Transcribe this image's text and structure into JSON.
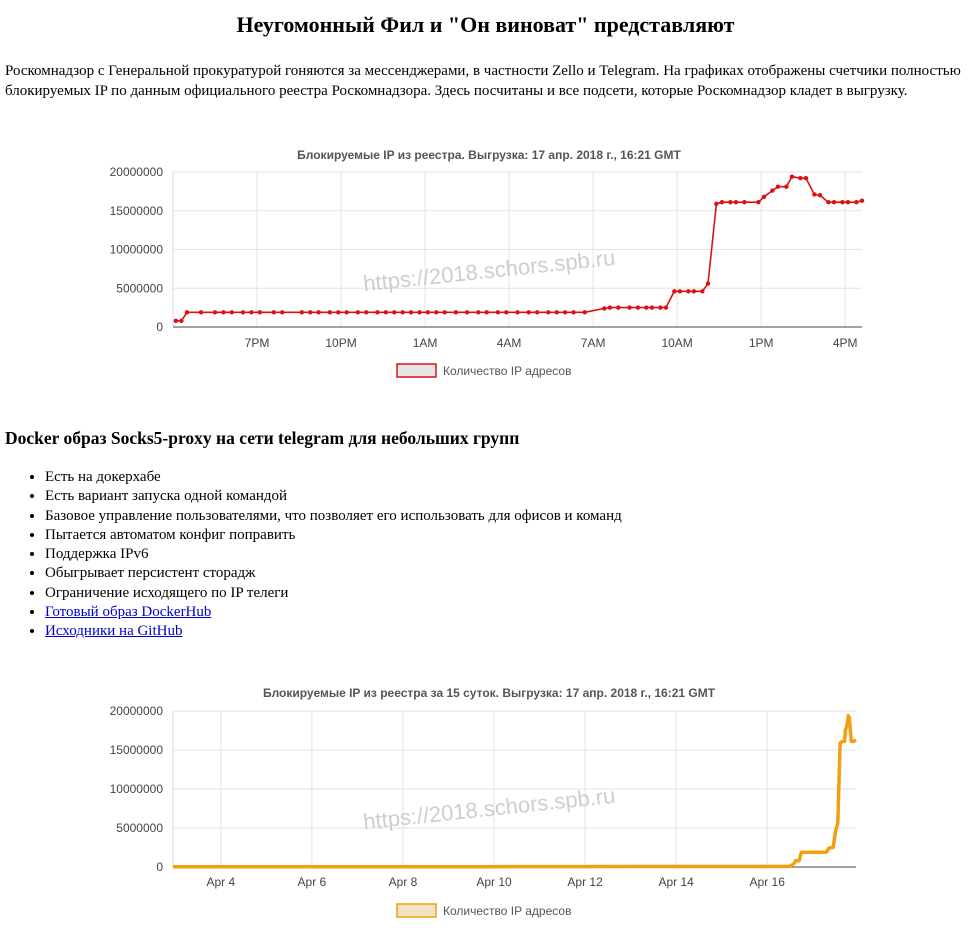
{
  "page": {
    "title": "Неугомонный Фил и \"Он виноват\" представляют",
    "intro": "Роскомнадзор с Генеральной прокуратурой гоняются за мессенджерами, в частности Zello и Telegram. На графиках отображены счетчики полностью блокируемых IP по данным официального реестра Роскомнадзора. Здесь посчитаны и все подсети, которые Роскомнадзор кладет в выгрузку.",
    "docker_heading": "Docker образ Socks5-proxy на сети telegram для небольших групп",
    "features": [
      "Есть на докерхабе",
      "Есть вариант запуска одной командой",
      "Базовое управление пользователями, что позволяет его использовать для офисов и команд",
      "Пытается автоматом конфиг поправить",
      "Поддержка IPv6",
      "Обыгрывает персистент сторадж",
      "Ограничение исходящего по IP телеги"
    ],
    "links": [
      "Готовый образ DockerHub",
      "Исходники на GitHub"
    ],
    "watermark": "https://2018.schors.spb.ru"
  },
  "chart_data": [
    {
      "type": "line",
      "title": "Блокируемые IP из реестра. Выгрузка: 17 апр. 2018 г., 16:21 GMT",
      "x_unit": "hour (time of day, 16 Apr 16:00 → 17 Apr 17:00)",
      "x_range": [
        16.0,
        40.6
      ],
      "x_ticks": [
        {
          "x": 19,
          "label": "7PM"
        },
        {
          "x": 22,
          "label": "10PM"
        },
        {
          "x": 25,
          "label": "1AM"
        },
        {
          "x": 28,
          "label": "4AM"
        },
        {
          "x": 31,
          "label": "7AM"
        },
        {
          "x": 34,
          "label": "10AM"
        },
        {
          "x": 37,
          "label": "1PM"
        },
        {
          "x": 40,
          "label": "4PM"
        }
      ],
      "ylim": [
        0,
        20000000
      ],
      "y_ticks": [
        0,
        5000000,
        10000000,
        15000000,
        20000000
      ],
      "grid": true,
      "legend": "bottom",
      "color": "#dd1111",
      "series": [
        {
          "name": "Количество IP адресов",
          "x": [
            16.1,
            16.3,
            16.5,
            17.0,
            17.5,
            17.8,
            18.1,
            18.5,
            18.8,
            19.1,
            19.6,
            19.9,
            20.6,
            20.9,
            21.2,
            21.6,
            21.9,
            22.2,
            22.6,
            22.9,
            23.3,
            23.6,
            23.9,
            24.2,
            24.5,
            24.8,
            25.1,
            25.4,
            25.7,
            26.1,
            26.5,
            26.9,
            27.2,
            27.6,
            27.9,
            28.3,
            28.7,
            29.0,
            29.4,
            29.7,
            30.0,
            30.3,
            30.7,
            31.4,
            31.6,
            31.9,
            32.3,
            32.6,
            32.9,
            33.1,
            33.4,
            33.6,
            33.9,
            34.1,
            34.4,
            34.6,
            34.9,
            35.1,
            35.4,
            35.6,
            35.9,
            36.1,
            36.4,
            36.9,
            37.1,
            37.4,
            37.6,
            37.9,
            38.1,
            38.4,
            38.6,
            38.9,
            39.1,
            39.4,
            39.6,
            39.9,
            40.1,
            40.4,
            40.6
          ],
          "y": [
            800000,
            800000,
            1900000,
            1900000,
            1900000,
            1900000,
            1900000,
            1900000,
            1900000,
            1900000,
            1900000,
            1900000,
            1900000,
            1900000,
            1900000,
            1900000,
            1900000,
            1900000,
            1900000,
            1900000,
            1900000,
            1900000,
            1900000,
            1900000,
            1900000,
            1900000,
            1900000,
            1900000,
            1900000,
            1900000,
            1900000,
            1900000,
            1900000,
            1900000,
            1900000,
            1900000,
            1900000,
            1900000,
            1900000,
            1900000,
            1900000,
            1900000,
            1900000,
            2400000,
            2500000,
            2500000,
            2500000,
            2500000,
            2500000,
            2500000,
            2500000,
            2500000,
            4600000,
            4600000,
            4600000,
            4600000,
            4600000,
            5600000,
            15900000,
            16100000,
            16100000,
            16100000,
            16100000,
            16100000,
            16800000,
            17600000,
            18100000,
            18100000,
            19400000,
            19200000,
            19200000,
            17100000,
            17000000,
            16100000,
            16100000,
            16100000,
            16100000,
            16100000,
            16300000
          ]
        }
      ]
    },
    {
      "type": "line",
      "title": "Блокируемые IP из реестра за 15 суток. Выгрузка: 17 апр. 2018 г., 16:21 GMT",
      "x_unit": "day of April 2018",
      "x_range": [
        2.95,
        17.95
      ],
      "x_ticks": [
        {
          "x": 4,
          "label": "Apr 4"
        },
        {
          "x": 6,
          "label": "Apr 6"
        },
        {
          "x": 8,
          "label": "Apr 8"
        },
        {
          "x": 10,
          "label": "Apr 10"
        },
        {
          "x": 12,
          "label": "Apr 12"
        },
        {
          "x": 14,
          "label": "Apr 14"
        },
        {
          "x": 16,
          "label": "Apr 16"
        }
      ],
      "ylim": [
        0,
        20000000
      ],
      "y_ticks": [
        0,
        5000000,
        10000000,
        15000000,
        20000000
      ],
      "grid": true,
      "legend": "bottom",
      "color": "#f0a010",
      "series": [
        {
          "name": "Количество IP адресов",
          "x": [
            2.95,
            4.0,
            6.0,
            8.0,
            10.0,
            12.0,
            14.0,
            16.0,
            16.5,
            16.6,
            16.62,
            16.7,
            16.75,
            16.8,
            17.0,
            17.2,
            17.3,
            17.35,
            17.4,
            17.45,
            17.5,
            17.55,
            17.6,
            17.65,
            17.7,
            17.72,
            17.75,
            17.78,
            17.8,
            17.85,
            17.9,
            17.95
          ],
          "y": [
            20000,
            30000,
            30000,
            40000,
            40000,
            50000,
            60000,
            60000,
            80000,
            500000,
            800000,
            800000,
            1900000,
            1900000,
            1900000,
            1900000,
            1900000,
            2400000,
            2500000,
            2500000,
            4600000,
            5600000,
            15900000,
            16100000,
            16100000,
            17600000,
            18100000,
            19400000,
            19200000,
            16100000,
            16100000,
            16300000
          ]
        }
      ]
    }
  ]
}
